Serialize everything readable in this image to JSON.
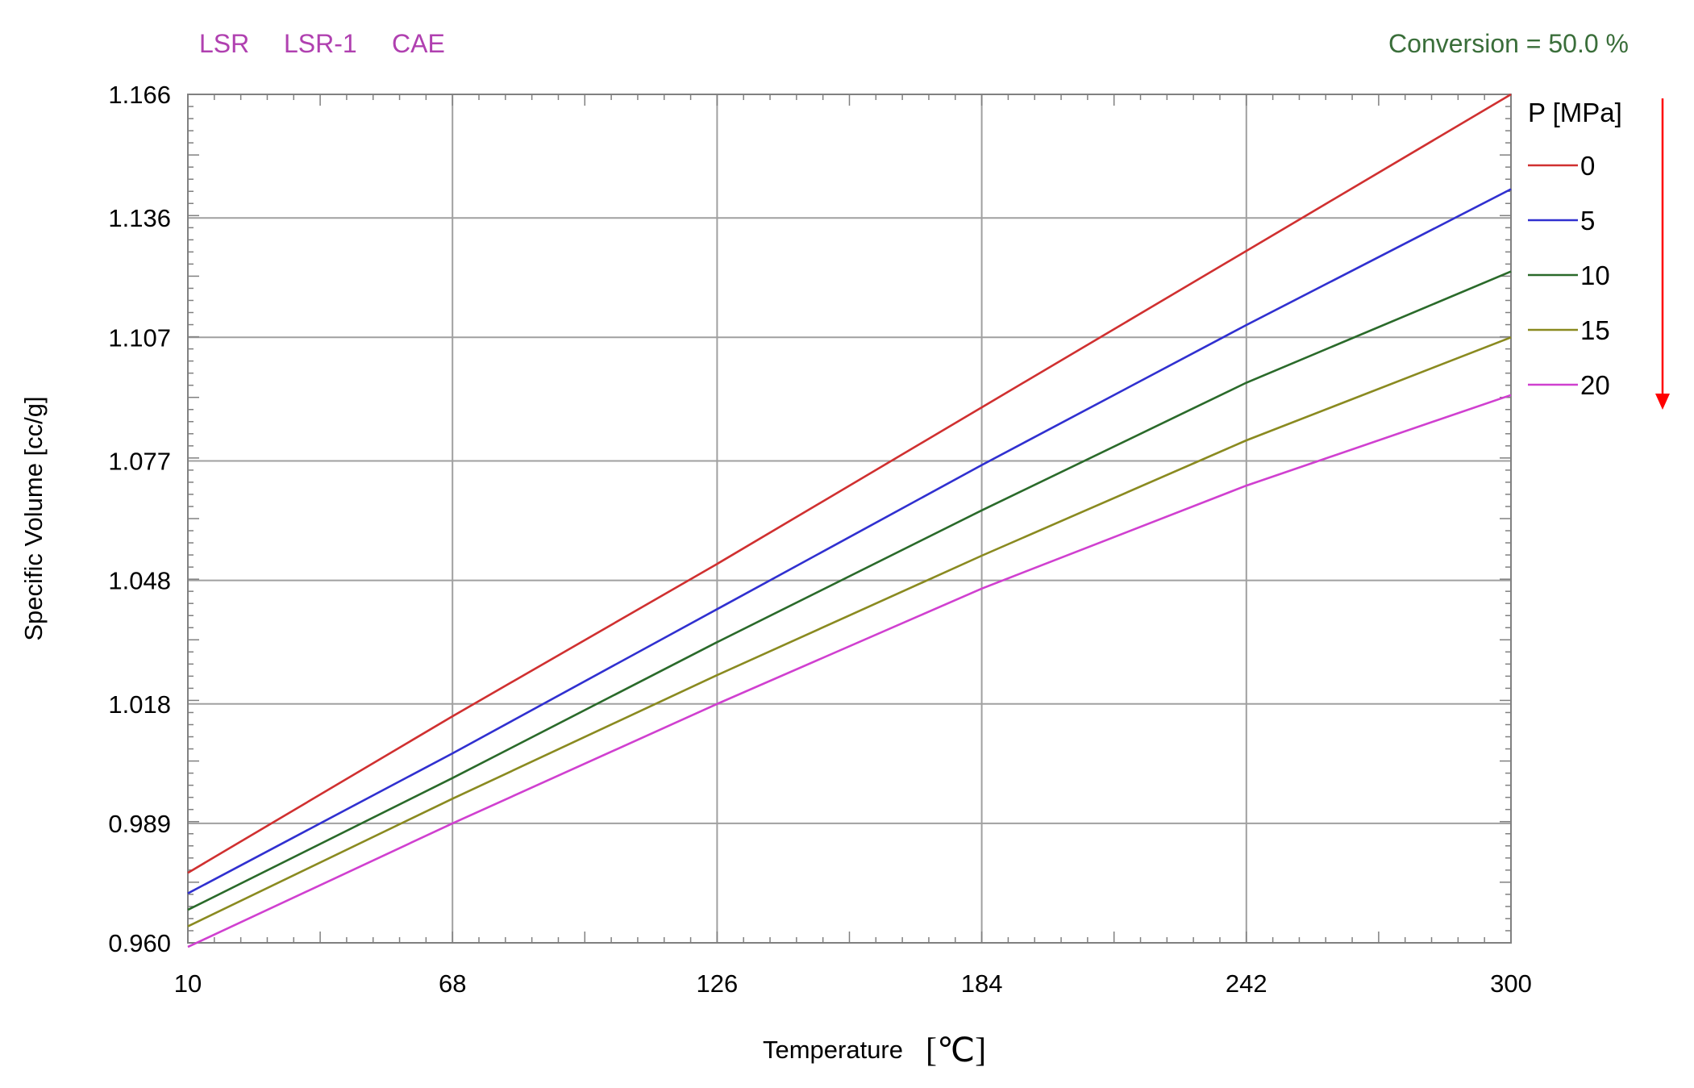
{
  "header": {
    "tabs": [
      {
        "label": "LSR"
      },
      {
        "label": "LSR-1"
      },
      {
        "label": "CAE"
      }
    ],
    "tab_color": "#b040b0",
    "conversion_text": "Conversion = 50.0 %",
    "conversion_color": "#3a6e3a"
  },
  "pressure_arrow_color": "#ff0000",
  "chart_data": {
    "type": "line",
    "title": "",
    "xlabel": "Temperature",
    "xunit": "[℃]",
    "ylabel": "Specific Volume [cc/g]",
    "xlim": [
      10,
      300
    ],
    "ylim": [
      0.96,
      1.166
    ],
    "x_ticks": [
      10,
      68,
      126,
      184,
      242,
      300
    ],
    "x_tick_labels": [
      "10",
      "68",
      "126",
      "184",
      "242",
      "300"
    ],
    "y_ticks": [
      0.96,
      0.989,
      1.018,
      1.048,
      1.077,
      1.107,
      1.136,
      1.166
    ],
    "y_tick_labels": [
      "0.960",
      "0.989",
      "1.018",
      "1.048",
      "1.077",
      "1.107",
      "1.136",
      "1.166"
    ],
    "grid": true,
    "legend_title": "P [MPa]",
    "legend_position": "right",
    "series": [
      {
        "name": "0",
        "color": "#d03030",
        "x": [
          10,
          68,
          126,
          184,
          242,
          300
        ],
        "values": [
          0.977,
          1.015,
          1.052,
          1.09,
          1.128,
          1.166
        ]
      },
      {
        "name": "5",
        "color": "#3030d0",
        "x": [
          10,
          68,
          126,
          184,
          242,
          300
        ],
        "values": [
          0.972,
          1.006,
          1.041,
          1.076,
          1.11,
          1.143
        ]
      },
      {
        "name": "10",
        "color": "#2a6a2a",
        "x": [
          10,
          68,
          126,
          184,
          242,
          300
        ],
        "values": [
          0.968,
          1.0,
          1.033,
          1.065,
          1.096,
          1.123
        ]
      },
      {
        "name": "15",
        "color": "#8a8a20",
        "x": [
          10,
          68,
          126,
          184,
          242,
          300
        ],
        "values": [
          0.964,
          0.995,
          1.025,
          1.054,
          1.082,
          1.107
        ]
      },
      {
        "name": "20",
        "color": "#d040d0",
        "x": [
          10,
          68,
          126,
          184,
          242,
          300
        ],
        "values": [
          0.959,
          0.989,
          1.018,
          1.046,
          1.071,
          1.093
        ]
      }
    ]
  }
}
